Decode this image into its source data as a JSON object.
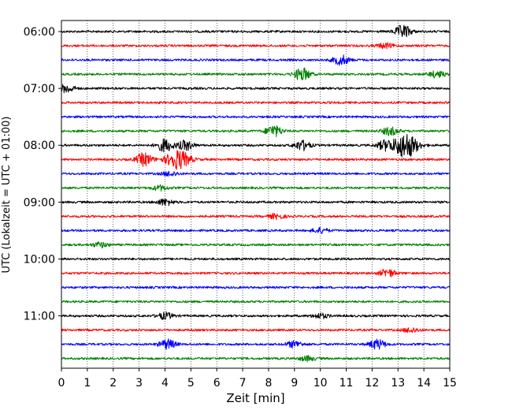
{
  "chart_data": {
    "type": "line",
    "xlabel": "Zeit  [min]",
    "ylabel": "UTC (Lokalzeit = UTC + 01:00)",
    "xlim": [
      0,
      15
    ],
    "x_ticks": [
      0,
      1,
      2,
      3,
      4,
      5,
      6,
      7,
      8,
      9,
      10,
      11,
      12,
      13,
      14,
      15
    ],
    "x_tick_labels": [
      "0",
      "1",
      "2",
      "3",
      "4",
      "5",
      "6",
      "7",
      "8",
      "9",
      "10",
      "11",
      "12",
      "13",
      "14",
      "15"
    ],
    "y_tick_labels": [
      "06:00",
      "07:00",
      "08:00",
      "09:00",
      "10:00",
      "11:00"
    ],
    "grid": "vertical-dotted",
    "traces": [
      {
        "start": "06:00",
        "color": "#000000",
        "bursts": [
          {
            "t": 13.2,
            "amp": 8
          }
        ]
      },
      {
        "start": "06:15",
        "color": "#ff0000",
        "bursts": [
          {
            "t": 12.5,
            "amp": 3
          }
        ]
      },
      {
        "start": "06:30",
        "color": "#0000ff",
        "bursts": [
          {
            "t": 10.8,
            "amp": 6
          }
        ]
      },
      {
        "start": "06:45",
        "color": "#008000",
        "bursts": [
          {
            "t": 9.3,
            "amp": 8
          },
          {
            "t": 14.5,
            "amp": 4
          }
        ]
      },
      {
        "start": "07:00",
        "color": "#000000",
        "bursts": [
          {
            "t": 0.2,
            "amp": 5
          }
        ]
      },
      {
        "start": "07:15",
        "color": "#ff0000",
        "bursts": []
      },
      {
        "start": "07:30",
        "color": "#0000ff",
        "bursts": []
      },
      {
        "start": "07:45",
        "color": "#008000",
        "bursts": [
          {
            "t": 8.2,
            "amp": 7
          },
          {
            "t": 12.7,
            "amp": 5
          }
        ]
      },
      {
        "start": "08:00",
        "color": "#000000",
        "bursts": [
          {
            "t": 4.0,
            "amp": 8
          },
          {
            "t": 4.8,
            "amp": 6
          },
          {
            "t": 9.3,
            "amp": 6
          },
          {
            "t": 12.5,
            "amp": 6
          },
          {
            "t": 13.3,
            "amp": 16
          }
        ]
      },
      {
        "start": "08:15",
        "color": "#ff0000",
        "bursts": [
          {
            "t": 3.2,
            "amp": 8
          },
          {
            "t": 4.5,
            "amp": 12
          }
        ]
      },
      {
        "start": "08:30",
        "color": "#0000ff",
        "bursts": [
          {
            "t": 4.2,
            "amp": 3
          }
        ]
      },
      {
        "start": "08:45",
        "color": "#008000",
        "bursts": [
          {
            "t": 3.8,
            "amp": 3
          }
        ]
      },
      {
        "start": "09:00",
        "color": "#000000",
        "bursts": [
          {
            "t": 4.0,
            "amp": 4
          }
        ]
      },
      {
        "start": "09:15",
        "color": "#ff0000",
        "bursts": [
          {
            "t": 8.3,
            "amp": 3
          }
        ]
      },
      {
        "start": "09:30",
        "color": "#0000ff",
        "bursts": [
          {
            "t": 10.0,
            "amp": 3
          }
        ]
      },
      {
        "start": "09:45",
        "color": "#008000",
        "bursts": [
          {
            "t": 1.5,
            "amp": 3
          }
        ]
      },
      {
        "start": "10:00",
        "color": "#000000",
        "bursts": []
      },
      {
        "start": "10:15",
        "color": "#ff0000",
        "bursts": [
          {
            "t": 12.6,
            "amp": 5
          }
        ]
      },
      {
        "start": "10:30",
        "color": "#0000ff",
        "bursts": []
      },
      {
        "start": "10:45",
        "color": "#008000",
        "bursts": []
      },
      {
        "start": "11:00",
        "color": "#000000",
        "bursts": [
          {
            "t": 4.0,
            "amp": 4
          },
          {
            "t": 10.0,
            "amp": 3
          }
        ]
      },
      {
        "start": "11:15",
        "color": "#ff0000",
        "bursts": [
          {
            "t": 13.5,
            "amp": 3
          }
        ]
      },
      {
        "start": "11:30",
        "color": "#0000ff",
        "bursts": [
          {
            "t": 4.1,
            "amp": 6
          },
          {
            "t": 12.2,
            "amp": 6
          },
          {
            "t": 9.0,
            "amp": 4
          }
        ]
      },
      {
        "start": "11:45",
        "color": "#008000",
        "bursts": [
          {
            "t": 9.5,
            "amp": 3
          }
        ]
      }
    ]
  }
}
